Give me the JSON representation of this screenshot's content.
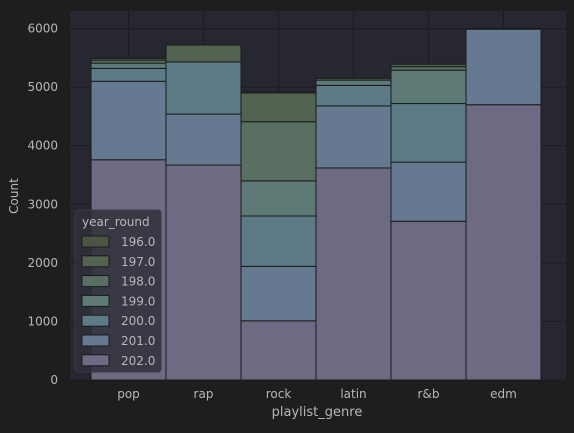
{
  "chart_data": {
    "type": "bar",
    "stacked": true,
    "categories": [
      "pop",
      "rap",
      "rock",
      "latin",
      "r&b",
      "edm"
    ],
    "xlabel": "playlist_genre",
    "ylabel": "Count",
    "ylim": [
      0,
      6300
    ],
    "yticks": [
      0,
      1000,
      2000,
      3000,
      4000,
      5000,
      6000
    ],
    "grid": true,
    "legend": {
      "title": "year_round",
      "position": "lower-left"
    },
    "series": [
      {
        "name": "202.0",
        "color": "#6f6a84",
        "values": [
          3760,
          3670,
          1010,
          3620,
          2710,
          4700
        ]
      },
      {
        "name": "201.0",
        "color": "#657a90",
        "values": [
          1340,
          870,
          930,
          1060,
          1010,
          1290
        ]
      },
      {
        "name": "200.0",
        "color": "#5d7b86",
        "values": [
          220,
          890,
          860,
          350,
          1000,
          0
        ]
      },
      {
        "name": "199.0",
        "color": "#5d7a77",
        "values": [
          90,
          0,
          600,
          90,
          570,
          0
        ]
      },
      {
        "name": "198.0",
        "color": "#596f61",
        "values": [
          50,
          0,
          1010,
          0,
          60,
          0
        ]
      },
      {
        "name": "197.0",
        "color": "#52634f",
        "values": [
          30,
          290,
          490,
          30,
          40,
          10
        ]
      },
      {
        "name": "196.0",
        "color": "#4a5543",
        "values": [
          0,
          0,
          20,
          0,
          0,
          0
        ]
      }
    ]
  },
  "colors": {
    "page_bg": "#1e1e1e",
    "plot_bg": "#262730",
    "grid": "#1c1c1c",
    "text": "#b7b7b7",
    "bar_edge": "#1a1a1a"
  }
}
